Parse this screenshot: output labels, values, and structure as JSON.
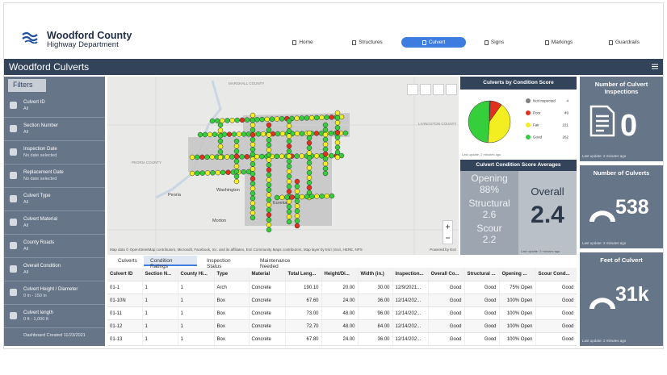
{
  "header": {
    "title": "Woodford County",
    "subtitle": "Highway Department",
    "nav": [
      {
        "label": "Home",
        "active": false
      },
      {
        "label": "Structures",
        "active": false
      },
      {
        "label": "Culvert",
        "active": true
      },
      {
        "label": "Signs",
        "active": false
      },
      {
        "label": "Markings",
        "active": false
      },
      {
        "label": "Guardrails",
        "active": false
      }
    ]
  },
  "dashboard_title": "Woodford Culverts",
  "sidebar": {
    "heading": "Filters",
    "footer": "Dashboard Created 11/23/2021",
    "filters": [
      {
        "title": "Culvert ID",
        "value": "All"
      },
      {
        "title": "Section Number",
        "value": "All"
      },
      {
        "title": "Inspection Date",
        "value": "No date selected"
      },
      {
        "title": "Replacement Date",
        "value": "No date selected"
      },
      {
        "title": "Culvert Type",
        "value": "All"
      },
      {
        "title": "Culvert Material",
        "value": "All"
      },
      {
        "title": "County Roads",
        "value": "All"
      },
      {
        "title": "Overall Condition",
        "value": "All"
      },
      {
        "title": "Culvert Height / Diameter",
        "value": "0 in - 150 in"
      },
      {
        "title": "Culvert length",
        "value": "0 ft - 1,000 ft"
      }
    ]
  },
  "map": {
    "labels": [
      "MARSHALL COUNTY",
      "PEORIA COUNTY",
      "LIVINGSTON COUNTY",
      "Peoria",
      "Washington",
      "Morton",
      "Eureka"
    ],
    "attribution": "Map data © OpenStreetMap contributors, Microsoft, Facebook, Inc. and its affiliates, Esri Community Maps contributors, Map layer by Esri | Esri, HERE, NPS",
    "powered_by": "Powered by Esri"
  },
  "pie": {
    "type": "pie",
    "title": "Culverts by Condition Score",
    "labels": [
      "Not Inspected",
      "Poor",
      "Fair",
      "Good"
    ],
    "values": [
      4,
      49,
      221,
      262
    ],
    "colors": [
      "#7f7f7f",
      "#e0301e",
      "#f2ee22",
      "#34cf3a"
    ],
    "last_update": "Last update: 2 minutes ago"
  },
  "averages": {
    "title": "Culvert Condition Score Averages",
    "items": [
      {
        "label": "Opening",
        "value": "88%"
      },
      {
        "label": "Structural",
        "value": "2.6"
      },
      {
        "label": "Scour",
        "value": "2.2"
      }
    ],
    "overall": {
      "label": "Overall",
      "value": "2.4"
    },
    "last_update": "Last update: 2 minutes ago"
  },
  "indicators": [
    {
      "title": "Number of Culvert Inspections",
      "value": "0",
      "last_update": "Last update: 2 minutes ago"
    },
    {
      "title": "Number of Culverts",
      "value": "538",
      "last_update": "Last update: 2 minutes ago"
    },
    {
      "title": "Feet of Culvert",
      "value": "31k",
      "last_update": "Last update: 2 minutes ago"
    }
  ],
  "tabs": [
    {
      "label": "Culverts",
      "active": false
    },
    {
      "label": "Condition Ratings",
      "active": true
    },
    {
      "label": "Inspection Status",
      "active": false
    },
    {
      "label": "Maintenance Needed",
      "active": false
    }
  ],
  "table": {
    "columns": [
      "Culvert ID",
      "Section N...",
      "County Hi...",
      "Type",
      "Material",
      "Total Leng...",
      "Height/Di...",
      "Width (in.)",
      "Inspection...",
      "Overall Co...",
      "Structural ...",
      "Opening ...",
      "Scour Cond..."
    ],
    "rows": [
      [
        "01-1",
        "1",
        "1",
        "Arch",
        "Concrete",
        "190.10",
        "20.00",
        "30.00",
        "12/9/2021...",
        "Good",
        "Good",
        "75% Open",
        "Good"
      ],
      [
        "01-10N",
        "1",
        "1",
        "Box",
        "Concrete",
        "67.60",
        "24.00",
        "36.00",
        "12/14/202...",
        "Good",
        "Good",
        "100% Open",
        "Good"
      ],
      [
        "01-11",
        "1",
        "1",
        "Box",
        "Concrete",
        "73.00",
        "48.00",
        "96.00",
        "12/14/202...",
        "Good",
        "Good",
        "100% Open",
        "Good"
      ],
      [
        "01-12",
        "1",
        "1",
        "Box",
        "Concrete",
        "72.70",
        "48.00",
        "84.00",
        "12/14/202...",
        "Good",
        "Good",
        "100% Open",
        "Good"
      ],
      [
        "01-13",
        "1",
        "1",
        "Box",
        "Concrete",
        "67.80",
        "24.00",
        "36.00",
        "12/14/202...",
        "Good",
        "Good",
        "100% Open",
        "Good"
      ]
    ]
  }
}
